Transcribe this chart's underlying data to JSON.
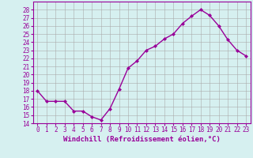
{
  "x": [
    0,
    1,
    2,
    3,
    4,
    5,
    6,
    7,
    8,
    9,
    10,
    11,
    12,
    13,
    14,
    15,
    16,
    17,
    18,
    19,
    20,
    21,
    22,
    23
  ],
  "y": [
    18.0,
    16.7,
    16.7,
    16.7,
    15.5,
    15.5,
    14.8,
    14.4,
    15.8,
    18.2,
    20.8,
    21.7,
    23.0,
    23.5,
    24.4,
    25.0,
    26.3,
    27.2,
    28.0,
    27.3,
    26.0,
    24.3,
    23.0,
    22.3
  ],
  "line_color": "#990099",
  "marker": "D",
  "marker_size": 2,
  "bg_color": "#d6f0f0",
  "grid_color": "#aaaaaa",
  "xlabel": "Windchill (Refroidissement éolien,°C)",
  "xlim": [
    -0.5,
    23.5
  ],
  "ylim": [
    14,
    29
  ],
  "yticks": [
    14,
    15,
    16,
    17,
    18,
    19,
    20,
    21,
    22,
    23,
    24,
    25,
    26,
    27,
    28
  ],
  "xticks": [
    0,
    1,
    2,
    3,
    4,
    5,
    6,
    7,
    8,
    9,
    10,
    11,
    12,
    13,
    14,
    15,
    16,
    17,
    18,
    19,
    20,
    21,
    22,
    23
  ],
  "tick_label_fontsize": 5.5,
  "xlabel_fontsize": 6.5,
  "line_width": 1.0
}
